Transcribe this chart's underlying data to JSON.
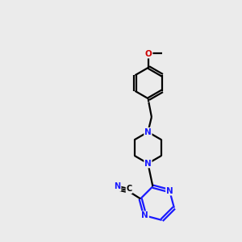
{
  "bg_color": "#ebebeb",
  "bc": "#000000",
  "nc": "#1a1aff",
  "oc": "#cc0000",
  "bw": 1.6,
  "fs": 7.5,
  "figsize": [
    3.0,
    3.0
  ],
  "dpi": 100,
  "xlim": [
    -1.5,
    8.5
  ],
  "ylim": [
    0.5,
    10.5
  ]
}
